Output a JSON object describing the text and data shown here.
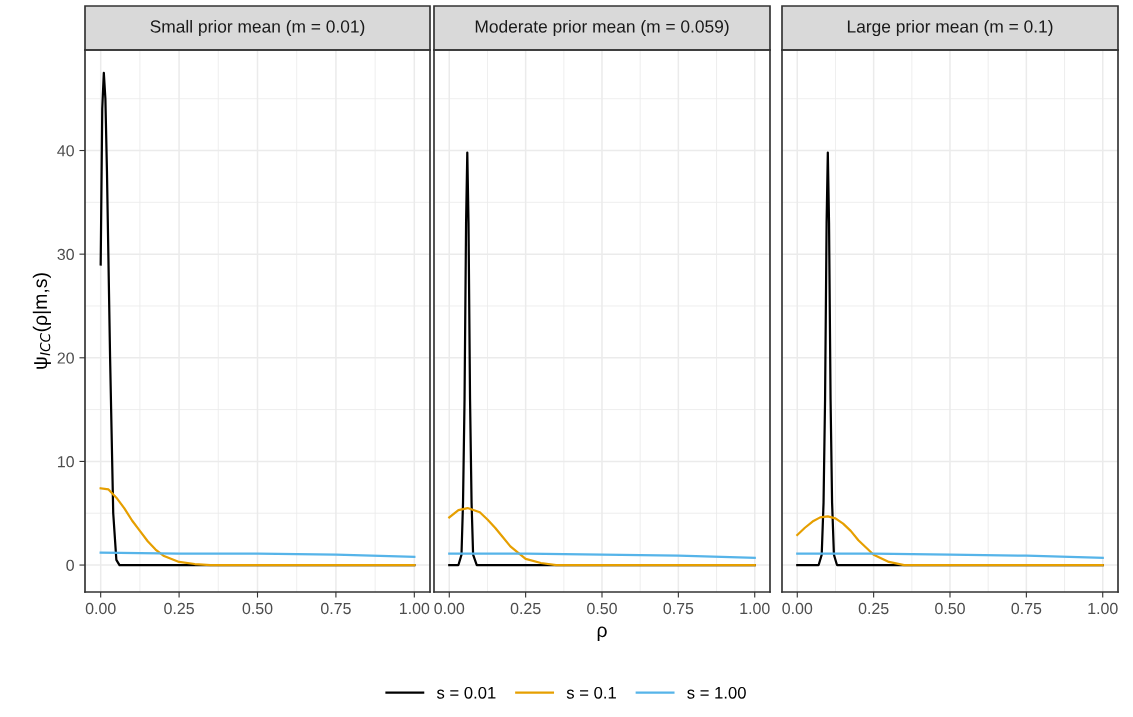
{
  "chart_data": [
    {
      "type": "line",
      "title": "Small prior mean (m = 0.01)",
      "ylabel": "ψ$_{ICC}$(ρ|m,s)",
      "xlim": [
        -0.05,
        1.05
      ],
      "xticks": [
        {
          "value": 0,
          "label": "0.00"
        },
        {
          "value": 0.25,
          "label": "0.25"
        },
        {
          "value": 0.5,
          "label": "0.50"
        },
        {
          "value": 0.75,
          "label": "0.75"
        },
        {
          "value": 1,
          "label": "1.00"
        }
      ],
      "ylim": [
        -2.6,
        49.7
      ],
      "yticks": [
        0,
        10,
        20,
        30,
        40
      ],
      "grid": true,
      "legend": "bottom",
      "series": [
        {
          "name": "s = 0.01",
          "color": "#000000",
          "x": [
            0,
            0.005,
            0.01,
            0.015,
            0.02,
            0.03,
            0.04,
            0.05,
            0.06,
            0.1,
            1.0
          ],
          "values": [
            29,
            44,
            47.5,
            45,
            38,
            20,
            5,
            0.5,
            0,
            0,
            0
          ]
        },
        {
          "name": "s = 0.1",
          "color": "#e69f00",
          "x": [
            0,
            0.025,
            0.05,
            0.075,
            0.1,
            0.125,
            0.15,
            0.175,
            0.2,
            0.25,
            0.3,
            0.35,
            0.5,
            1.0
          ],
          "values": [
            7.4,
            7.3,
            6.5,
            5.5,
            4.3,
            3.3,
            2.3,
            1.5,
            0.9,
            0.3,
            0.1,
            0,
            0,
            0
          ]
        },
        {
          "name": "s = 1.00",
          "color": "#56b4e9",
          "x": [
            0,
            0.25,
            0.5,
            0.75,
            1.0
          ],
          "values": [
            1.2,
            1.1,
            1.1,
            1.0,
            0.8
          ]
        }
      ]
    },
    {
      "type": "line",
      "title": "Moderate prior mean (m = 0.059)",
      "xlabel": "ρ",
      "xlim": [
        -0.05,
        1.05
      ],
      "xticks": [
        {
          "value": 0,
          "label": "0.00"
        },
        {
          "value": 0.25,
          "label": "0.25"
        },
        {
          "value": 0.5,
          "label": "0.50"
        },
        {
          "value": 0.75,
          "label": "0.75"
        },
        {
          "value": 1,
          "label": "1.00"
        }
      ],
      "ylim": [
        -2.6,
        49.7
      ],
      "yticks": [
        0,
        10,
        20,
        30,
        40
      ],
      "grid": true,
      "tick_labels": "x",
      "series": [
        {
          "color": "#000000",
          "x": [
            0,
            0.03,
            0.04,
            0.045,
            0.05,
            0.055,
            0.059,
            0.063,
            0.068,
            0.073,
            0.078,
            0.09,
            1.0
          ],
          "values": [
            0,
            0,
            1,
            6,
            16,
            33,
            39.8,
            33,
            16,
            6,
            1,
            0,
            0
          ]
        },
        {
          "color": "#e69f00",
          "x": [
            0,
            0.03,
            0.06,
            0.1,
            0.125,
            0.15,
            0.175,
            0.2,
            0.25,
            0.3,
            0.35,
            0.4,
            1.0
          ],
          "values": [
            4.6,
            5.3,
            5.5,
            5.1,
            4.4,
            3.6,
            2.7,
            1.8,
            0.6,
            0.2,
            0,
            0,
            0
          ]
        },
        {
          "color": "#56b4e9",
          "x": [
            0,
            0.25,
            0.5,
            0.75,
            1.0
          ],
          "values": [
            1.1,
            1.1,
            1.0,
            0.9,
            0.7
          ]
        }
      ]
    },
    {
      "type": "line",
      "title": "Large prior mean (m = 0.1)",
      "xlim": [
        -0.05,
        1.05
      ],
      "xticks": [
        {
          "value": 0,
          "label": "0.00"
        },
        {
          "value": 0.25,
          "label": "0.25"
        },
        {
          "value": 0.5,
          "label": "0.50"
        },
        {
          "value": 0.75,
          "label": "0.75"
        },
        {
          "value": 1,
          "label": "1.00"
        }
      ],
      "ylim": [
        -2.6,
        49.7
      ],
      "yticks": [
        0,
        10,
        20,
        30,
        40
      ],
      "grid": true,
      "tick_labels": "x",
      "series": [
        {
          "color": "#000000",
          "x": [
            0,
            0.07,
            0.08,
            0.086,
            0.091,
            0.096,
            0.1,
            0.104,
            0.109,
            0.114,
            0.12,
            0.13,
            1.0
          ],
          "values": [
            0,
            0,
            1,
            6,
            16,
            33,
            39.8,
            33,
            16,
            6,
            1,
            0,
            0
          ]
        },
        {
          "color": "#e69f00",
          "x": [
            0,
            0.025,
            0.05,
            0.075,
            0.1,
            0.125,
            0.15,
            0.175,
            0.2,
            0.25,
            0.3,
            0.35,
            0.4,
            1.0
          ],
          "values": [
            2.9,
            3.6,
            4.2,
            4.6,
            4.7,
            4.5,
            4.0,
            3.3,
            2.4,
            1.0,
            0.3,
            0,
            0,
            0
          ]
        },
        {
          "color": "#56b4e9",
          "x": [
            0,
            0.25,
            0.5,
            0.75,
            1.0
          ],
          "values": [
            1.1,
            1.1,
            1.0,
            0.9,
            0.7
          ]
        }
      ]
    }
  ]
}
